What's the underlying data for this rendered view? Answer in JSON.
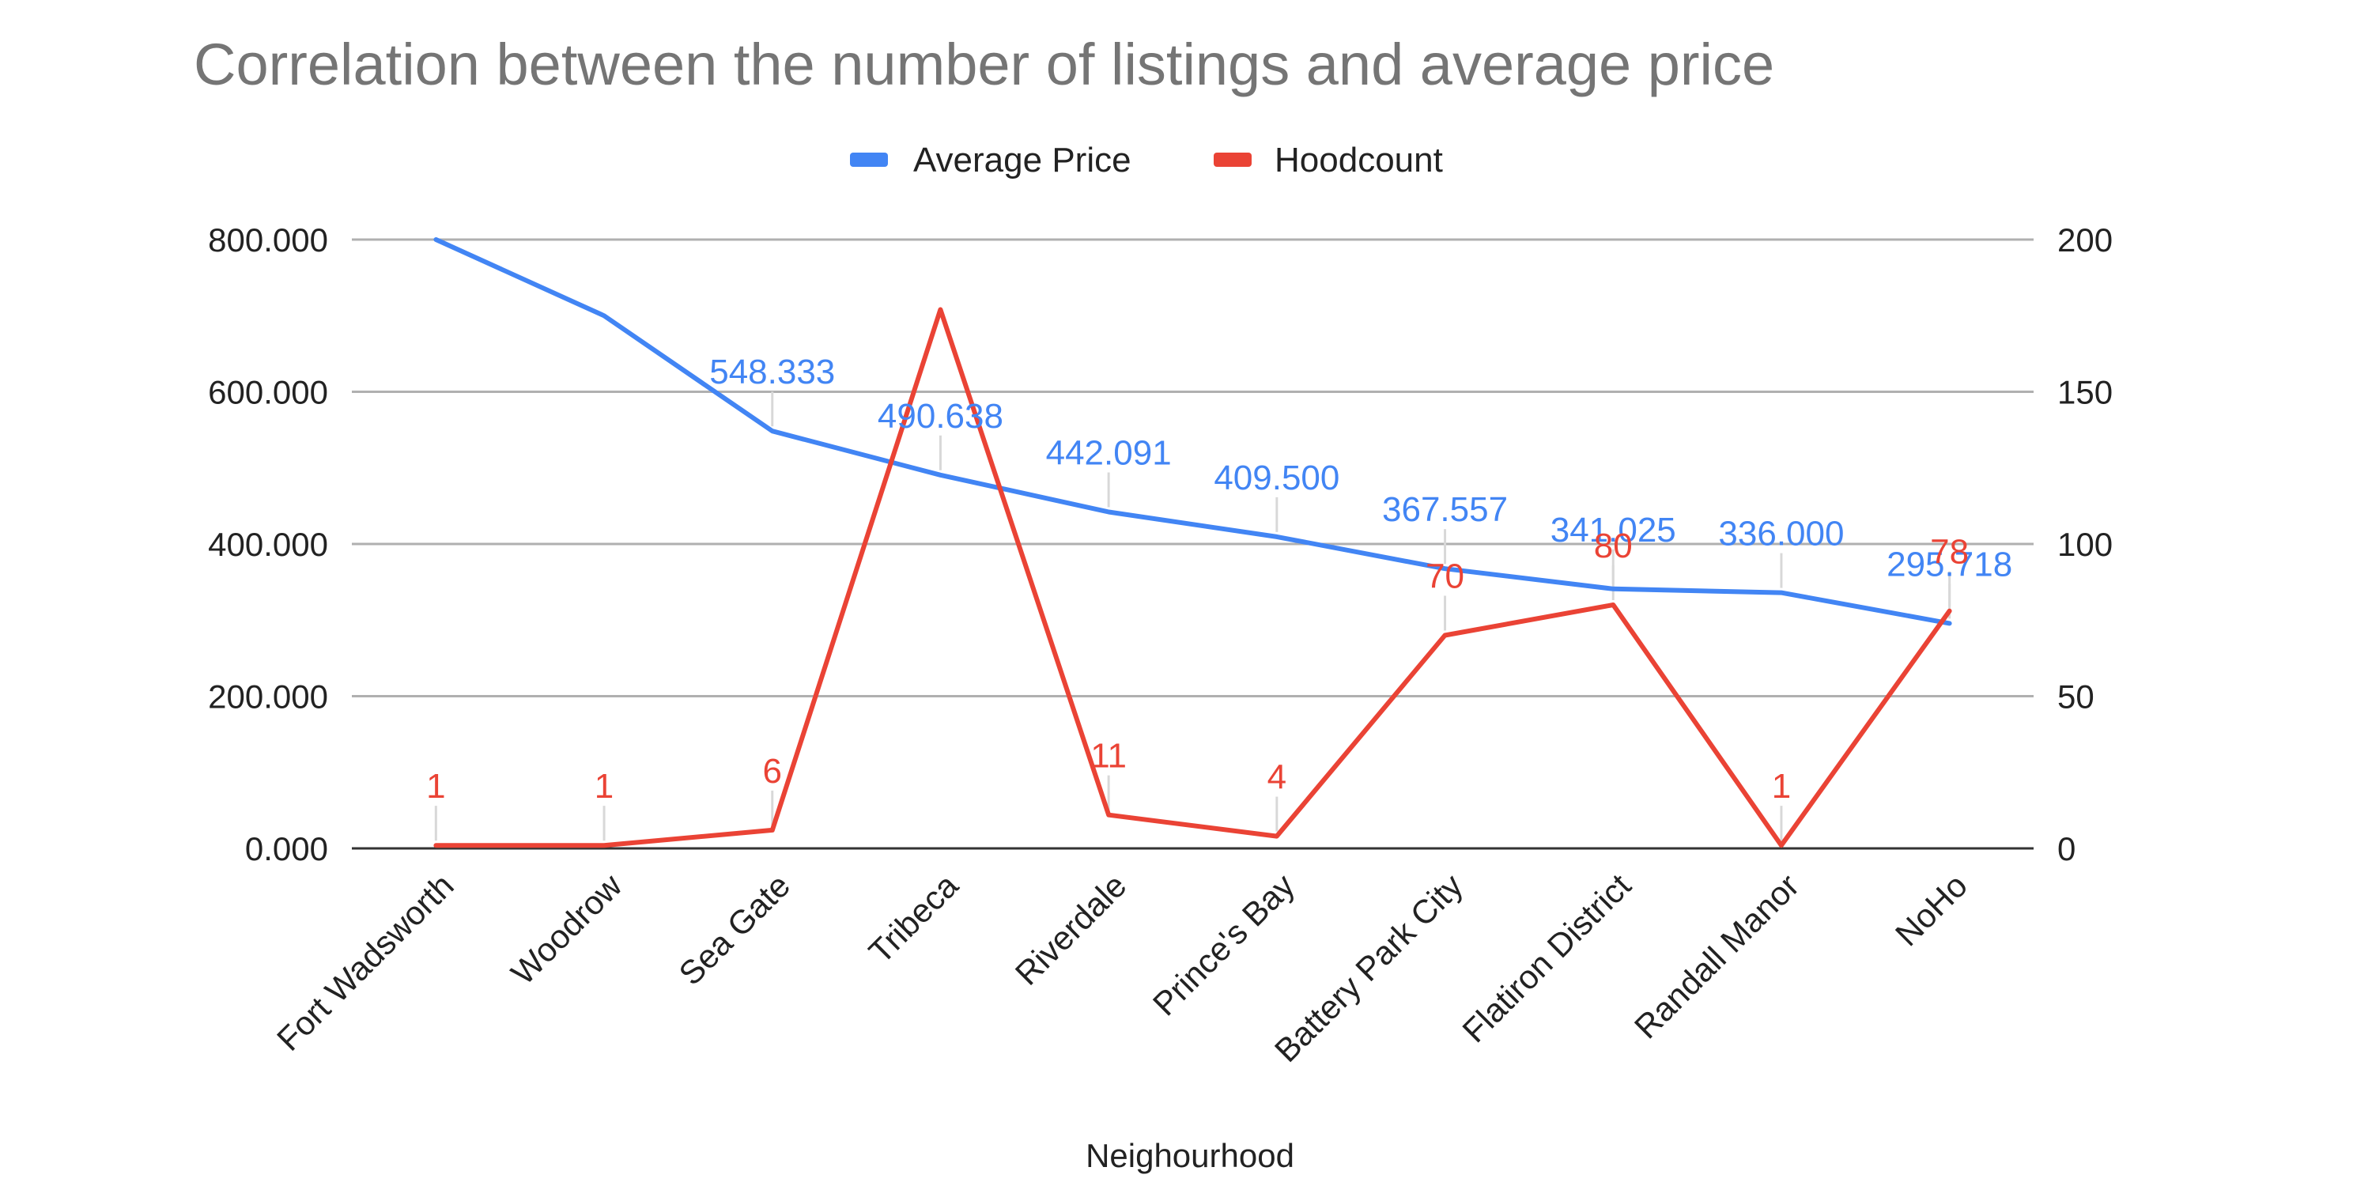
{
  "chart_data": {
    "type": "line",
    "title": "Correlation between the number of listings and average price",
    "xlabel": "Neighourhood",
    "ylabel": "",
    "y2label": "",
    "categories": [
      "Fort Wadsworth",
      "Woodrow",
      "Sea Gate",
      "Tribeca",
      "Riverdale",
      "Prince's Bay",
      "Battery Park City",
      "Flatiron District",
      "Randall Manor",
      "NoHo"
    ],
    "ylim": [
      0,
      800
    ],
    "y2lim": [
      0,
      200
    ],
    "yticks": [
      "0.000",
      "200.000",
      "400.000",
      "600.000",
      "800.000"
    ],
    "y2ticks": [
      "0",
      "50",
      "100",
      "150",
      "200"
    ],
    "legend_position": "top",
    "grid": true,
    "series": [
      {
        "name": "Average Price",
        "axis": "left",
        "color": "#4285f4",
        "values": [
          800,
          700,
          548.333,
          490.638,
          442.091,
          409.5,
          367.557,
          341.025,
          336.0,
          295.718
        ],
        "labels": [
          "",
          "",
          "548.333",
          "490.638",
          "442.091",
          "409.500",
          "367.557",
          "341.025",
          "336.000",
          "295.718"
        ]
      },
      {
        "name": "Hoodcount",
        "axis": "right",
        "color": "#ea4335",
        "values": [
          1,
          1,
          6,
          177,
          11,
          4,
          70,
          80,
          1,
          78
        ],
        "labels": [
          "1",
          "1",
          "6",
          "",
          "11",
          "4",
          "70",
          "80",
          "1",
          "78"
        ]
      }
    ]
  }
}
